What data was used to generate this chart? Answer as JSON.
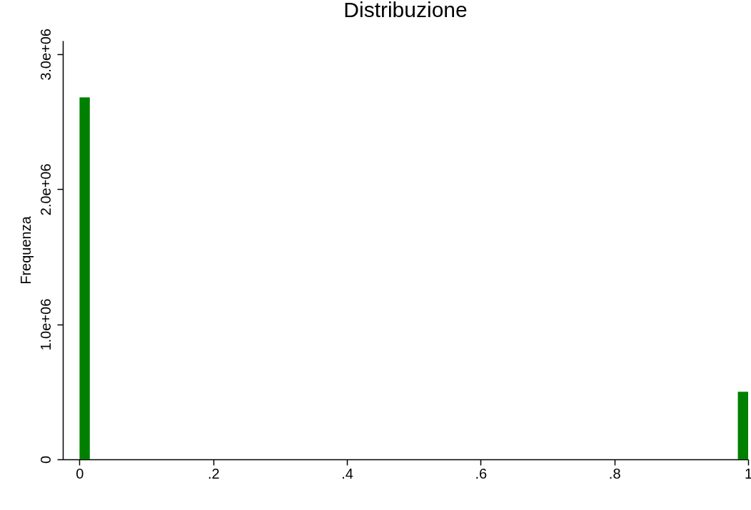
{
  "chart_data": {
    "type": "histogram",
    "title": "Distribuzione",
    "ylabel": "Frequenza",
    "bins": [
      0,
      0.0154,
      0.9846,
      1
    ],
    "values": [
      2680000,
      0,
      500000
    ],
    "color": "#008000",
    "xlim": [
      -0.025,
      1
    ],
    "xticks": [
      0,
      {
        "value": 0.2,
        "label": ".2"
      },
      {
        "value": 0.4,
        "label": ".4"
      },
      {
        "value": 0.6,
        "label": ".6"
      },
      {
        "value": 0.8,
        "label": ".8"
      },
      1
    ],
    "ylim": [
      0,
      3100000
    ],
    "yticks": [
      0,
      {
        "value": 1000000,
        "label": "1.0e+06"
      },
      {
        "value": 2000000,
        "label": "2.0e+06"
      },
      {
        "value": 3000000,
        "label": "3.0e+06"
      }
    ],
    "grid": false
  }
}
